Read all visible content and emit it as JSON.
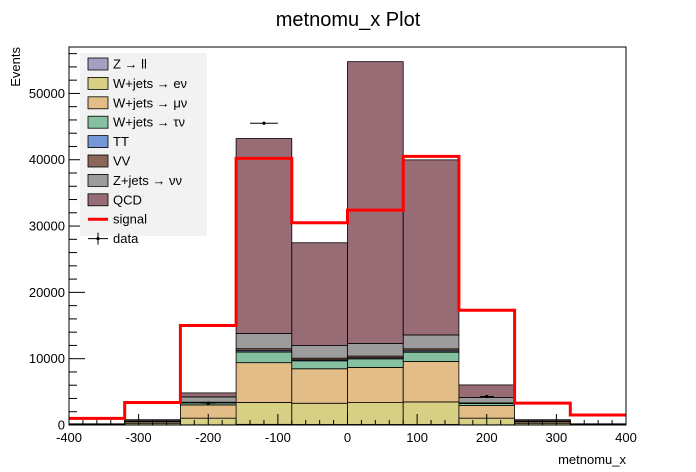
{
  "chart_data": {
    "type": "bar",
    "title": "metnomu_x Plot",
    "xlabel": "metnomu_x",
    "ylabel": "Events",
    "xlim": [
      -400,
      400
    ],
    "ylim": [
      0,
      57000
    ],
    "x_ticks": [
      -400,
      -300,
      -200,
      -100,
      0,
      100,
      200,
      300,
      400
    ],
    "y_ticks": [
      0,
      10000,
      20000,
      30000,
      40000,
      50000
    ],
    "bin_edges": [
      -400,
      -320,
      -240,
      -160,
      -80,
      0,
      80,
      160,
      240,
      320,
      400
    ],
    "stacked_series": [
      {
        "name": "Z → ll",
        "color": "#a69fc4",
        "values": [
          0,
          0,
          30,
          100,
          80,
          80,
          80,
          30,
          0,
          0
        ]
      },
      {
        "name": "W+jets → eν",
        "color": "#d7cf84",
        "values": [
          50,
          200,
          1000,
          3300,
          3200,
          3300,
          3400,
          1000,
          200,
          50
        ]
      },
      {
        "name": "W+jets → μν",
        "color": "#e2bd88",
        "values": [
          80,
          250,
          2000,
          6000,
          5200,
          5300,
          6100,
          1900,
          250,
          80
        ]
      },
      {
        "name": "W+jets → τν",
        "color": "#85c0a0",
        "values": [
          10,
          50,
          300,
          1600,
          1200,
          1300,
          1400,
          300,
          50,
          10
        ]
      },
      {
        "name": "TT",
        "color": "#7497d6",
        "values": [
          0,
          10,
          50,
          200,
          150,
          160,
          200,
          50,
          10,
          0
        ]
      },
      {
        "name": "VV",
        "color": "#8c6658",
        "values": [
          0,
          10,
          60,
          300,
          250,
          250,
          300,
          60,
          10,
          0
        ]
      },
      {
        "name": "Z+jets → νν",
        "color": "#9c9c9c",
        "values": [
          30,
          100,
          800,
          2300,
          1900,
          1900,
          2100,
          800,
          100,
          30
        ]
      },
      {
        "name": "QCD",
        "color": "#976c74",
        "values": [
          10,
          180,
          600,
          29400,
          15500,
          42500,
          26400,
          1900,
          180,
          10
        ]
      }
    ],
    "signal": {
      "name": "signal",
      "color": "#ff0000",
      "values": [
        1000,
        3400,
        15000,
        40200,
        30500,
        32400,
        40500,
        17300,
        3300,
        1500
      ]
    },
    "data": {
      "name": "data",
      "points": [
        {
          "x": -120,
          "y": 45500,
          "xerr": 20
        },
        {
          "x": -200,
          "y": 3300,
          "xerr": 10
        },
        {
          "x": 200,
          "y": 4300,
          "xerr": 10
        }
      ]
    },
    "legend_position": "top-left"
  }
}
